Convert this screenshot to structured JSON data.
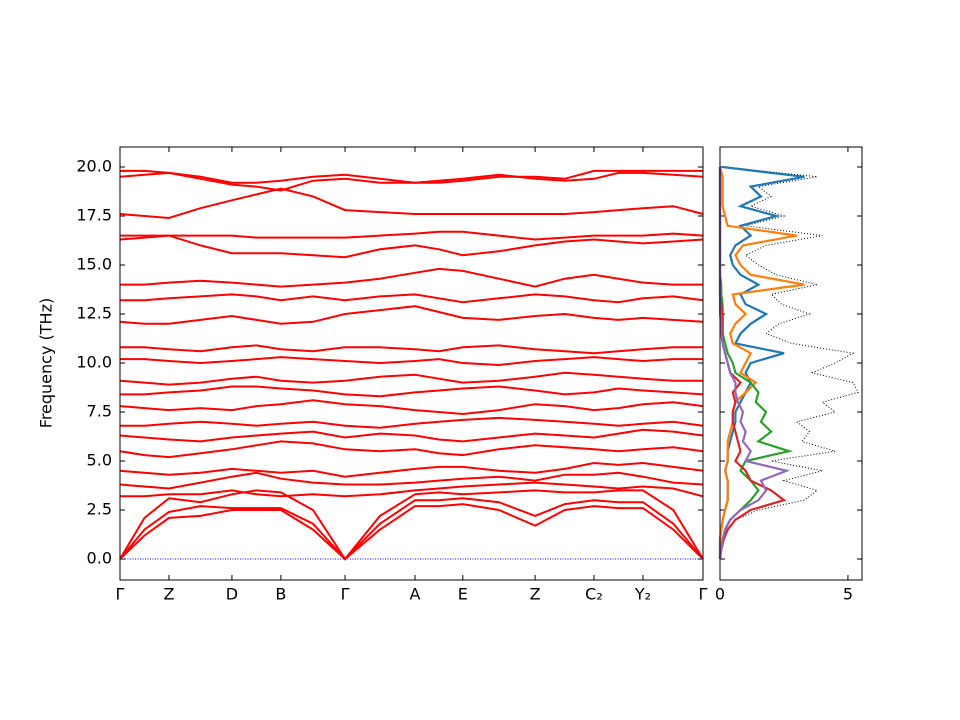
{
  "chart_data": [
    {
      "type": "line",
      "ylabel": "Frequency (THz)",
      "x": [
        0,
        0.042,
        0.084,
        0.138,
        0.192,
        0.234,
        0.276,
        0.331,
        0.386,
        0.446,
        0.506,
        0.547,
        0.588,
        0.65,
        0.712,
        0.763,
        0.813,
        0.855,
        0.897,
        0.949,
        1
      ],
      "xlim": [
        0,
        1
      ],
      "xticks": [
        {
          "value": 0,
          "label": "Γ"
        },
        {
          "value": 0.084,
          "label": "Z"
        },
        {
          "value": 0.192,
          "label": "D"
        },
        {
          "value": 0.276,
          "label": "B"
        },
        {
          "value": 0.386,
          "label": "Γ"
        },
        {
          "value": 0.506,
          "label": "A"
        },
        {
          "value": 0.588,
          "label": "E"
        },
        {
          "value": 0.712,
          "label": "Z"
        },
        {
          "value": 0.813,
          "label": "C₂"
        },
        {
          "value": 0.897,
          "label": "Y₂"
        },
        {
          "value": 1,
          "label": "Γ"
        }
      ],
      "ylim": [
        -1.07,
        21.02
      ],
      "yticks": [
        {
          "value": 0,
          "label": "0.0"
        },
        2.5,
        {
          "value": 5,
          "label": "5.0"
        },
        7.5,
        {
          "value": 10,
          "label": "10.0"
        },
        12.5,
        {
          "value": 15,
          "label": "15.0"
        },
        17.5,
        {
          "value": 20,
          "label": "20.0"
        }
      ],
      "zero_line_color": "#0000ff",
      "series": [
        {
          "color": "#ff0000",
          "values": [
            0,
            1.2,
            2.1,
            2.2,
            2.5,
            2.5,
            2.5,
            1.5,
            0,
            1.5,
            2.7,
            2.7,
            2.8,
            2.5,
            1.7,
            2.5,
            2.7,
            2.6,
            2.6,
            1.5,
            0
          ]
        },
        {
          "color": "#ff0000",
          "values": [
            0,
            1.5,
            2.4,
            2.7,
            2.6,
            2.6,
            2.6,
            1.8,
            0,
            1.8,
            3.0,
            3.0,
            3.1,
            2.9,
            2.2,
            2.8,
            3.0,
            2.9,
            2.9,
            1.8,
            0
          ]
        },
        {
          "color": "#ff0000",
          "values": [
            0,
            2.1,
            3.1,
            2.9,
            3.3,
            3.5,
            3.4,
            2.5,
            0,
            2.2,
            3.3,
            3.4,
            3.3,
            3.4,
            3.5,
            3.4,
            3.4,
            3.5,
            3.5,
            2.5,
            0
          ]
        },
        {
          "color": "#ff0000",
          "values": [
            3.2,
            3.2,
            3.3,
            3.3,
            3.5,
            3.3,
            3.2,
            3.3,
            3.2,
            3.3,
            3.5,
            3.6,
            3.7,
            3.8,
            3.9,
            3.8,
            3.7,
            3.6,
            3.7,
            3.6,
            3.2
          ]
        },
        {
          "color": "#ff0000",
          "values": [
            3.8,
            3.7,
            3.6,
            3.9,
            4.2,
            4.4,
            4.1,
            3.9,
            3.8,
            3.8,
            3.9,
            4.0,
            4.1,
            4.2,
            4.0,
            4.3,
            4.3,
            4.4,
            4.2,
            3.9,
            3.8
          ]
        },
        {
          "color": "#ff0000",
          "values": [
            4.5,
            4.4,
            4.3,
            4.4,
            4.6,
            4.5,
            4.4,
            4.5,
            4.2,
            4.4,
            4.6,
            4.7,
            4.7,
            4.5,
            4.4,
            4.6,
            4.9,
            4.8,
            4.9,
            4.7,
            4.5
          ]
        },
        {
          "color": "#ff0000",
          "values": [
            5.5,
            5.3,
            5.2,
            5.4,
            5.6,
            5.8,
            6.0,
            5.9,
            5.6,
            5.5,
            5.6,
            5.4,
            5.3,
            5.6,
            5.8,
            5.7,
            5.6,
            5.5,
            5.6,
            5.7,
            5.5
          ]
        },
        {
          "color": "#ff0000",
          "values": [
            6.3,
            6.2,
            6.1,
            6.0,
            6.2,
            6.3,
            6.4,
            6.5,
            6.2,
            6.4,
            6.3,
            6.1,
            6.0,
            6.2,
            6.4,
            6.3,
            6.2,
            6.4,
            6.6,
            6.5,
            6.3
          ]
        },
        {
          "color": "#ff0000",
          "values": [
            6.8,
            6.8,
            6.9,
            7.0,
            6.9,
            6.8,
            6.9,
            7.0,
            6.8,
            6.7,
            6.9,
            7.0,
            7.1,
            7.2,
            7.1,
            7.0,
            6.9,
            6.8,
            6.9,
            7.0,
            6.8
          ]
        },
        {
          "color": "#ff0000",
          "values": [
            7.8,
            7.7,
            7.6,
            7.7,
            7.6,
            7.8,
            7.9,
            8.1,
            7.9,
            7.8,
            7.6,
            7.5,
            7.4,
            7.6,
            7.9,
            7.8,
            7.6,
            7.7,
            7.9,
            8.0,
            7.8
          ]
        },
        {
          "color": "#ff0000",
          "values": [
            8.4,
            8.4,
            8.5,
            8.6,
            8.8,
            8.8,
            8.7,
            8.6,
            8.4,
            8.3,
            8.5,
            8.6,
            8.7,
            8.8,
            8.6,
            8.4,
            8.5,
            8.7,
            8.6,
            8.5,
            8.4
          ]
        },
        {
          "color": "#ff0000",
          "values": [
            9.1,
            9.0,
            8.9,
            9.0,
            9.2,
            9.3,
            9.1,
            9.0,
            9.1,
            9.3,
            9.4,
            9.2,
            9.0,
            9.1,
            9.3,
            9.5,
            9.4,
            9.3,
            9.2,
            9.1,
            9.1
          ]
        },
        {
          "color": "#ff0000",
          "values": [
            10.2,
            10.2,
            10.1,
            10.0,
            10.1,
            10.2,
            10.3,
            10.2,
            10.1,
            10.0,
            10.1,
            10.2,
            10.0,
            9.9,
            10.1,
            10.2,
            10.3,
            10.2,
            10.1,
            10.2,
            10.2
          ]
        },
        {
          "color": "#ff0000",
          "values": [
            10.8,
            10.8,
            10.7,
            10.6,
            10.8,
            10.9,
            10.7,
            10.6,
            10.8,
            10.8,
            10.7,
            10.6,
            10.8,
            10.9,
            10.7,
            10.6,
            10.5,
            10.6,
            10.7,
            10.8,
            10.8
          ]
        },
        {
          "color": "#ff0000",
          "values": [
            12.1,
            12.0,
            12.0,
            12.2,
            12.4,
            12.2,
            12.0,
            12.1,
            12.5,
            12.7,
            12.9,
            12.6,
            12.3,
            12.2,
            12.4,
            12.5,
            12.3,
            12.2,
            12.3,
            12.2,
            12.1
          ]
        },
        {
          "color": "#ff0000",
          "values": [
            13.2,
            13.2,
            13.3,
            13.4,
            13.5,
            13.4,
            13.2,
            13.4,
            13.2,
            13.4,
            13.5,
            13.3,
            13.1,
            13.3,
            13.5,
            13.4,
            13.2,
            13.1,
            13.3,
            13.4,
            13.2
          ]
        },
        {
          "color": "#ff0000",
          "values": [
            14.0,
            14.0,
            14.1,
            14.2,
            14.1,
            14.0,
            13.9,
            14.0,
            14.1,
            14.3,
            14.6,
            14.8,
            14.7,
            14.3,
            13.9,
            14.3,
            14.5,
            14.3,
            14.1,
            14.0,
            14.0
          ]
        },
        {
          "color": "#ff0000",
          "values": [
            16.3,
            16.4,
            16.5,
            16.0,
            15.6,
            15.6,
            15.6,
            15.5,
            15.4,
            15.8,
            16.0,
            15.8,
            15.5,
            15.7,
            16.0,
            16.2,
            16.3,
            16.2,
            16.1,
            16.2,
            16.3
          ]
        },
        {
          "color": "#ff0000",
          "values": [
            16.5,
            16.5,
            16.5,
            16.5,
            16.5,
            16.4,
            16.4,
            16.4,
            16.4,
            16.5,
            16.6,
            16.7,
            16.7,
            16.5,
            16.3,
            16.4,
            16.5,
            16.5,
            16.5,
            16.6,
            16.5
          ]
        },
        {
          "color": "#ff0000",
          "values": [
            17.6,
            17.5,
            17.4,
            17.9,
            18.3,
            18.6,
            18.9,
            18.5,
            17.8,
            17.7,
            17.6,
            17.6,
            17.6,
            17.6,
            17.6,
            17.6,
            17.7,
            17.8,
            17.9,
            18.0,
            17.6
          ]
        },
        {
          "color": "#ff0000",
          "values": [
            19.5,
            19.6,
            19.7,
            19.4,
            19.1,
            19.0,
            18.8,
            19.3,
            19.4,
            19.2,
            19.2,
            19.3,
            19.4,
            19.6,
            19.4,
            19.3,
            19.4,
            19.7,
            19.7,
            19.6,
            19.5
          ]
        },
        {
          "color": "#ff0000",
          "values": [
            19.8,
            19.8,
            19.7,
            19.5,
            19.2,
            19.2,
            19.3,
            19.5,
            19.6,
            19.4,
            19.2,
            19.2,
            19.3,
            19.5,
            19.5,
            19.4,
            19.8,
            19.8,
            19.8,
            19.8,
            19.8
          ]
        }
      ]
    },
    {
      "type": "dos",
      "y": [
        0,
        0.5,
        1,
        1.5,
        2,
        2.5,
        3,
        3.5,
        4,
        4.5,
        5,
        5.5,
        6,
        6.5,
        7,
        7.5,
        8,
        8.5,
        9,
        9.5,
        10,
        10.5,
        11,
        11.5,
        12,
        12.5,
        13,
        13.5,
        14,
        14.5,
        15,
        15.5,
        16,
        16.5,
        17,
        17.5,
        18,
        18.5,
        19,
        19.5,
        20
      ],
      "xlim": [
        0,
        5.55
      ],
      "xticks": [
        0,
        5
      ],
      "ylim": [
        -1.07,
        21.02
      ],
      "yticks": [
        0,
        2.5,
        5,
        7.5,
        10,
        12.5,
        15,
        17.5,
        20
      ],
      "ytick_labels": false,
      "series": [
        {
          "color": "#000000",
          "dotted": true,
          "values": [
            0,
            0.05,
            0.15,
            0.3,
            0.6,
            1.5,
            3.3,
            3.8,
            2.5,
            4.0,
            2.0,
            4.5,
            3.2,
            3.5,
            3.0,
            4.5,
            4.0,
            5.4,
            5.2,
            3.6,
            4.5,
            5.2,
            2.8,
            1.8,
            2.3,
            3.5,
            2.4,
            2.0,
            3.8,
            2.2,
            1.5,
            1.0,
            1.8,
            4.0,
            1.0,
            2.5,
            1.2,
            2.0,
            1.5,
            3.8,
            0.2
          ]
        },
        {
          "color": "#1f77b4",
          "values": [
            0,
            0,
            0,
            0.05,
            0.1,
            0.2,
            0.3,
            0.3,
            0.3,
            0.2,
            0.3,
            0.3,
            0.4,
            0.5,
            0.6,
            0.6,
            0.8,
            1.0,
            1.2,
            1.0,
            1.2,
            2.5,
            0.6,
            0.8,
            1.2,
            1.8,
            1.0,
            0.8,
            1.5,
            0.8,
            0.5,
            0.4,
            0.6,
            1.2,
            0.8,
            2.2,
            0.8,
            1.6,
            1.2,
            3.3,
            0.1
          ]
        },
        {
          "color": "#ff7f0e",
          "values": [
            0,
            0,
            0,
            0.05,
            0.1,
            0.2,
            0.3,
            0.3,
            0.3,
            0.2,
            0.3,
            0.3,
            0.3,
            0.4,
            0.5,
            0.5,
            0.6,
            1.0,
            1.4,
            0.8,
            1.0,
            1.2,
            0.5,
            0.4,
            0.6,
            1.0,
            0.6,
            0.5,
            3.3,
            1.2,
            0.8,
            0.6,
            0.9,
            3.0,
            0.3,
            0.2,
            0.1,
            0.1,
            0.1,
            0.1,
            0
          ]
        },
        {
          "color": "#2ca02c",
          "values": [
            0,
            0.05,
            0.1,
            0.2,
            0.4,
            0.8,
            1.2,
            1.5,
            1.2,
            0.8,
            1.0,
            2.7,
            1.5,
            2.0,
            1.6,
            1.8,
            1.4,
            1.5,
            1.2,
            0.6,
            0.5,
            0.3,
            0.2,
            0.1,
            0.1,
            0.1,
            0.1,
            0.05,
            0.05,
            0,
            0,
            0,
            0,
            0,
            0,
            0,
            0,
            0,
            0,
            0,
            0
          ]
        },
        {
          "color": "#d62728",
          "values": [
            0,
            0.05,
            0.15,
            0.3,
            0.6,
            1.2,
            2.5,
            2.0,
            1.2,
            1.0,
            0.6,
            0.8,
            0.7,
            0.6,
            0.5,
            0.5,
            0.6,
            0.5,
            0.8,
            0.4,
            0.3,
            0.2,
            0.1,
            0.1,
            0.1,
            0.1,
            0.05,
            0,
            0,
            0,
            0,
            0,
            0,
            0,
            0,
            0,
            0,
            0,
            0,
            0,
            0
          ]
        },
        {
          "color": "#9467bd",
          "values": [
            0,
            0.05,
            0.1,
            0.2,
            0.4,
            0.8,
            1.5,
            1.8,
            1.6,
            2.6,
            1.0,
            1.2,
            0.9,
            1.0,
            0.8,
            0.9,
            0.7,
            0.6,
            0.6,
            0.4,
            0.3,
            0.2,
            0.1,
            0.05,
            0.05,
            0,
            0,
            0,
            0,
            0,
            0,
            0,
            0,
            0,
            0,
            0,
            0,
            0,
            0,
            0,
            0
          ]
        }
      ]
    }
  ]
}
